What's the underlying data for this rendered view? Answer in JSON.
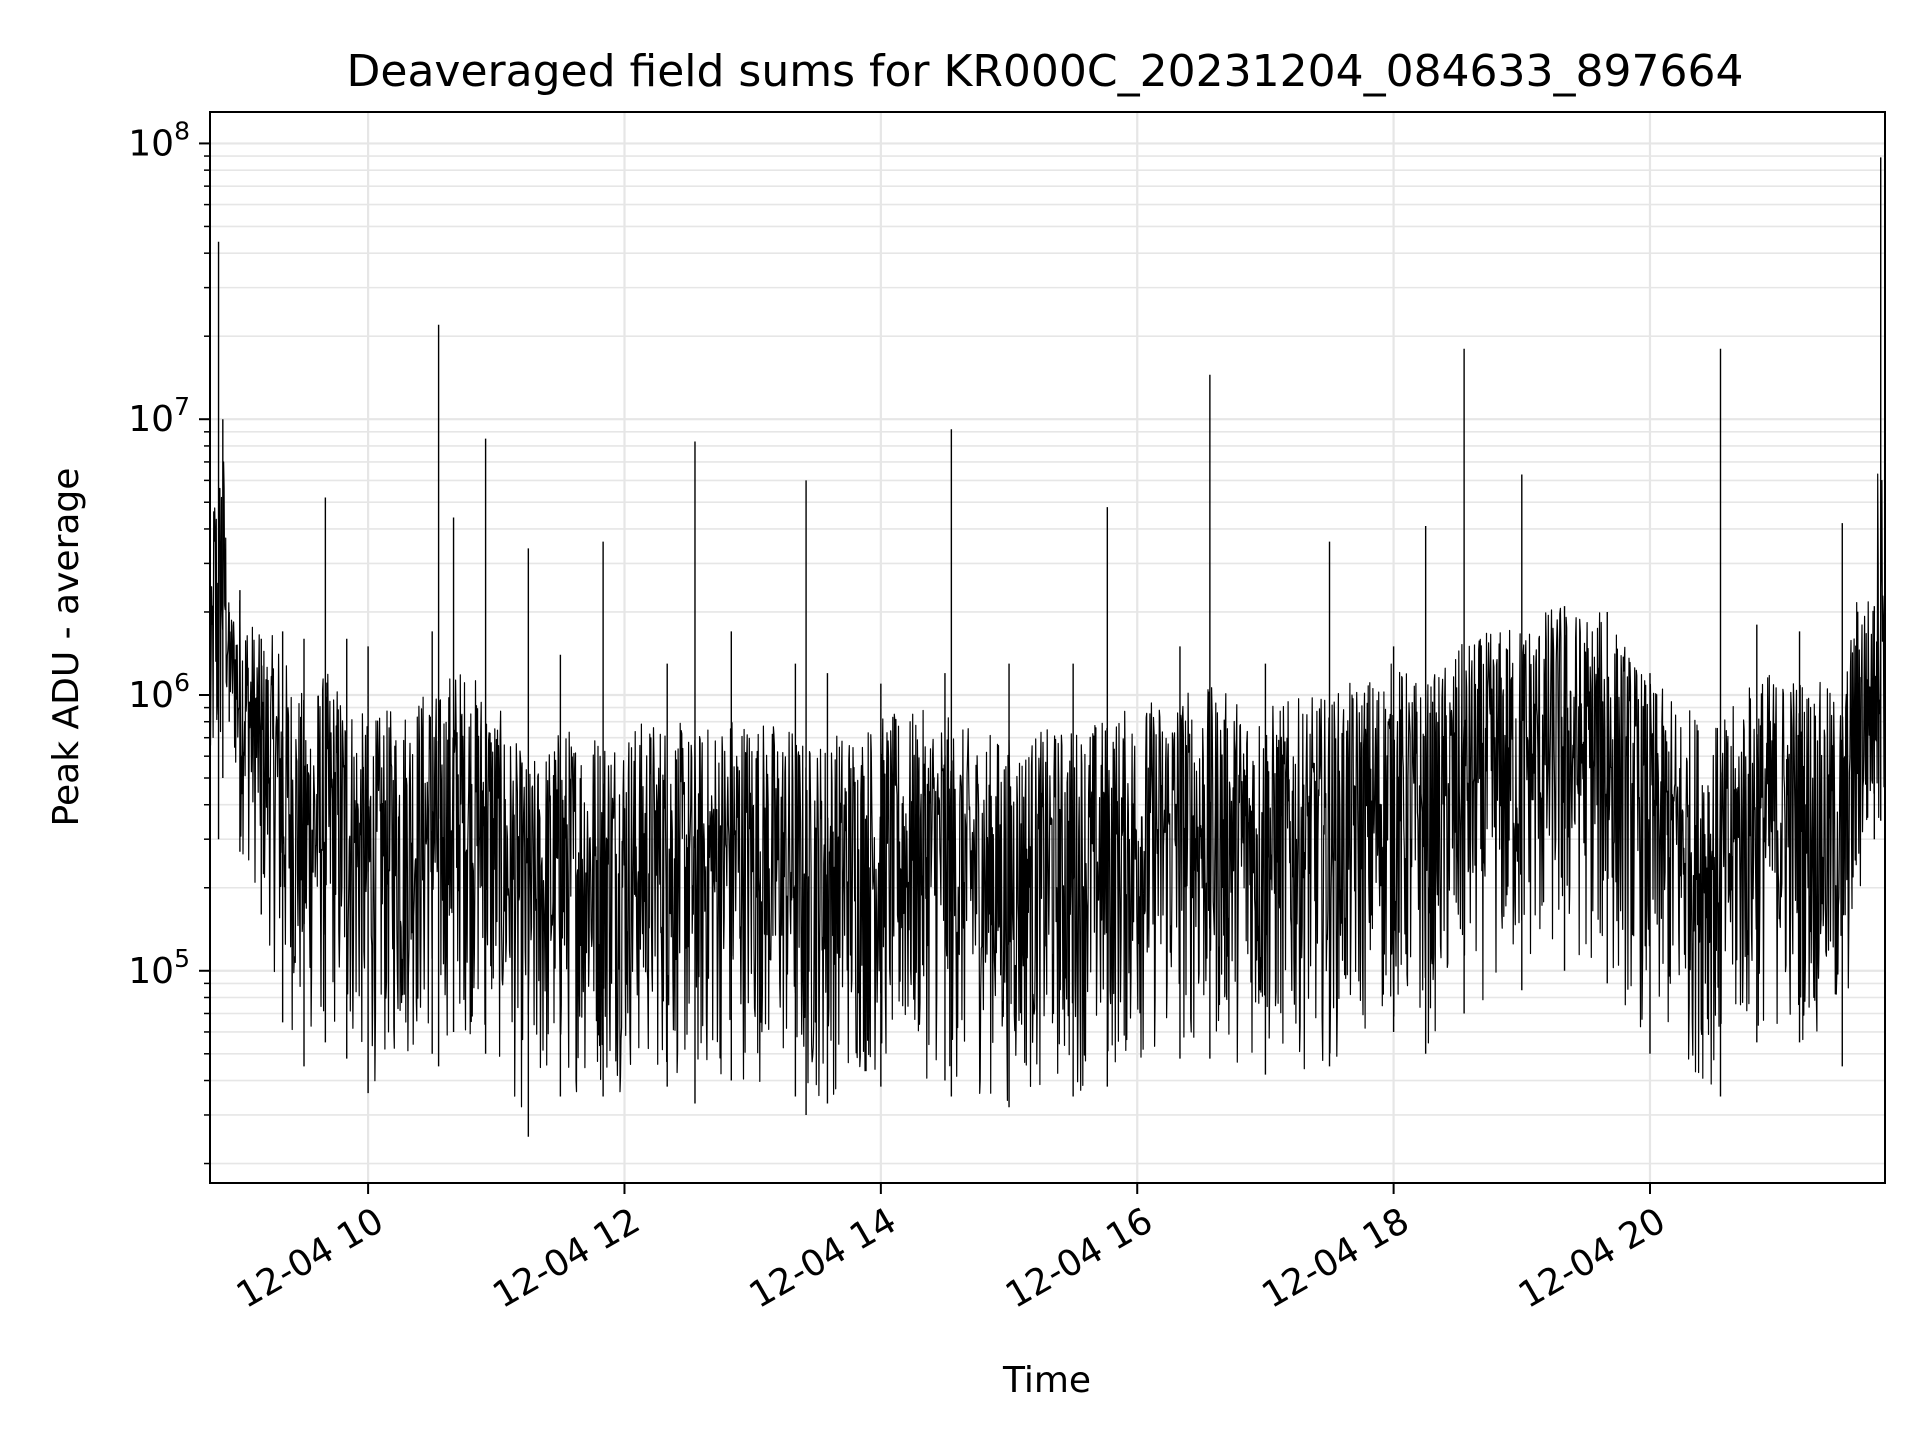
{
  "chart_data": {
    "type": "line",
    "title": "Deaveraged field sums for KR000C_20231204_084633_897664",
    "xlabel": "Time",
    "ylabel": "Peak ADU - average",
    "yscale": "log",
    "grid": true,
    "line_color": "#000000",
    "grid_color": "#e6e6e6",
    "xlim": [
      "2023-12-04 08:46",
      "2023-12-04 21:50"
    ],
    "ylim": [
      17000,
      130000000
    ],
    "x_ticks": [
      {
        "value": "2023-12-04 10:00",
        "label": "12-04 10"
      },
      {
        "value": "2023-12-04 12:00",
        "label": "12-04 12"
      },
      {
        "value": "2023-12-04 14:00",
        "label": "12-04 14"
      },
      {
        "value": "2023-12-04 16:00",
        "label": "12-04 16"
      },
      {
        "value": "2023-12-04 18:00",
        "label": "12-04 18"
      },
      {
        "value": "2023-12-04 20:00",
        "label": "12-04 20"
      }
    ],
    "y_ticks": [
      {
        "value": 100000,
        "base": "10",
        "exp": "5"
      },
      {
        "value": 1000000,
        "base": "10",
        "exp": "6"
      },
      {
        "value": 10000000,
        "base": "10",
        "exp": "7"
      },
      {
        "value": 100000000,
        "base": "10",
        "exp": "8"
      }
    ],
    "series": [
      {
        "x": [
          "2023-12-04 08:46",
          "2023-12-04 08:50",
          "2023-12-04 08:52",
          "2023-12-04 08:55",
          "2023-12-04 09:00",
          "2023-12-04 09:10",
          "2023-12-04 09:20",
          "2023-12-04 09:30",
          "2023-12-04 09:40",
          "2023-12-04 09:50",
          "2023-12-04 10:00",
          "2023-12-04 10:30",
          "2023-12-04 10:33",
          "2023-12-04 10:40",
          "2023-12-04 10:55",
          "2023-12-04 11:15",
          "2023-12-04 11:30",
          "2023-12-04 11:50",
          "2023-12-04 12:20",
          "2023-12-04 12:33",
          "2023-12-04 12:50",
          "2023-12-04 13:20",
          "2023-12-04 13:25",
          "2023-12-04 13:35",
          "2023-12-04 14:00",
          "2023-12-04 14:30",
          "2023-12-04 14:33",
          "2023-12-04 15:00",
          "2023-12-04 15:30",
          "2023-12-04 15:46",
          "2023-12-04 16:20",
          "2023-12-04 16:34",
          "2023-12-04 17:00",
          "2023-12-04 17:30",
          "2023-12-04 18:00",
          "2023-12-04 18:15",
          "2023-12-04 18:33",
          "2023-12-04 19:00",
          "2023-12-04 19:20",
          "2023-12-04 19:40",
          "2023-12-04 20:00",
          "2023-12-04 20:33",
          "2023-12-04 20:50",
          "2023-12-04 21:10",
          "2023-12-04 21:30",
          "2023-12-04 21:45",
          "2023-12-04 21:48",
          "2023-12-04 21:50"
        ],
        "y_high": [
          1300000,
          44000000,
          10000000,
          2000000,
          2400000,
          1600000,
          1700000,
          1600000,
          5200000,
          1600000,
          1500000,
          1700000,
          22000000,
          4400000,
          8500000,
          3400000,
          1400000,
          3600000,
          1300000,
          8300000,
          1700000,
          1300000,
          6000000,
          1200000,
          1100000,
          1200000,
          9200000,
          1300000,
          1300000,
          4800000,
          1500000,
          14500000,
          1300000,
          3600000,
          1500000,
          4100000,
          18000000,
          6300000,
          2100000,
          2000000,
          1200000,
          18000000,
          1800000,
          1700000,
          4200000,
          2100000,
          89000000,
          1400000
        ],
        "y_low": [
          330000,
          300000,
          500000,
          800000,
          270000,
          160000,
          65000,
          45000,
          55000,
          48000,
          36000,
          50000,
          45000,
          60000,
          50000,
          25000,
          35000,
          35000,
          38000,
          33000,
          40000,
          35000,
          30000,
          33000,
          38000,
          40000,
          35000,
          32000,
          35000,
          38000,
          48000,
          48000,
          42000,
          45000,
          60000,
          50000,
          70000,
          85000,
          100000,
          90000,
          50000,
          35000,
          55000,
          55000,
          45000,
          300000,
          350000,
          350000
        ]
      }
    ]
  }
}
